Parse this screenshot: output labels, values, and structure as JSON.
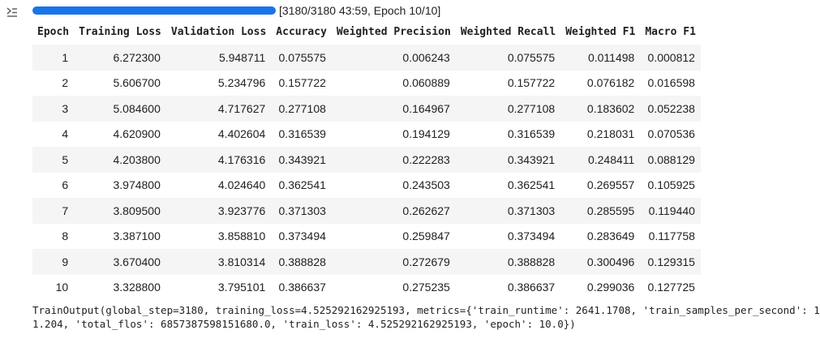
{
  "output_icon": "output-toggle-icon",
  "progress": {
    "fraction": 1.0,
    "text": "[3180/3180 43:59, Epoch 10/10]",
    "color": "#1a73e8"
  },
  "table": {
    "headers": [
      "Epoch",
      "Training Loss",
      "Validation Loss",
      "Accuracy",
      "Weighted Precision",
      "Weighted Recall",
      "Weighted F1",
      "Macro F1"
    ],
    "rows": [
      [
        "1",
        "6.272300",
        "5.948711",
        "0.075575",
        "0.006243",
        "0.075575",
        "0.011498",
        "0.000812"
      ],
      [
        "2",
        "5.606700",
        "5.234796",
        "0.157722",
        "0.060889",
        "0.157722",
        "0.076182",
        "0.016598"
      ],
      [
        "3",
        "5.084600",
        "4.717627",
        "0.277108",
        "0.164967",
        "0.277108",
        "0.183602",
        "0.052238"
      ],
      [
        "4",
        "4.620900",
        "4.402604",
        "0.316539",
        "0.194129",
        "0.316539",
        "0.218031",
        "0.070536"
      ],
      [
        "5",
        "4.203800",
        "4.176316",
        "0.343921",
        "0.222283",
        "0.343921",
        "0.248411",
        "0.088129"
      ],
      [
        "6",
        "3.974800",
        "4.024640",
        "0.362541",
        "0.243503",
        "0.362541",
        "0.269557",
        "0.105925"
      ],
      [
        "7",
        "3.809500",
        "3.923776",
        "0.371303",
        "0.262627",
        "0.371303",
        "0.285595",
        "0.119440"
      ],
      [
        "8",
        "3.387100",
        "3.858810",
        "0.373494",
        "0.259847",
        "0.373494",
        "0.283649",
        "0.117758"
      ],
      [
        "9",
        "3.670400",
        "3.810314",
        "0.388828",
        "0.272679",
        "0.388828",
        "0.300496",
        "0.129315"
      ],
      [
        "10",
        "3.328800",
        "3.795101",
        "0.386637",
        "0.275235",
        "0.386637",
        "0.299036",
        "0.127725"
      ]
    ]
  },
  "output_lines": [
    "TrainOutput(global_step=3180, training_loss=4.525292162925193, metrics={'train_runtime': 2641.1708, 'train_samples_per_second': 1",
    "1.204, 'total_flos': 6857387598151680.0, 'train_loss': 4.525292162925193, 'epoch': 10.0})"
  ]
}
